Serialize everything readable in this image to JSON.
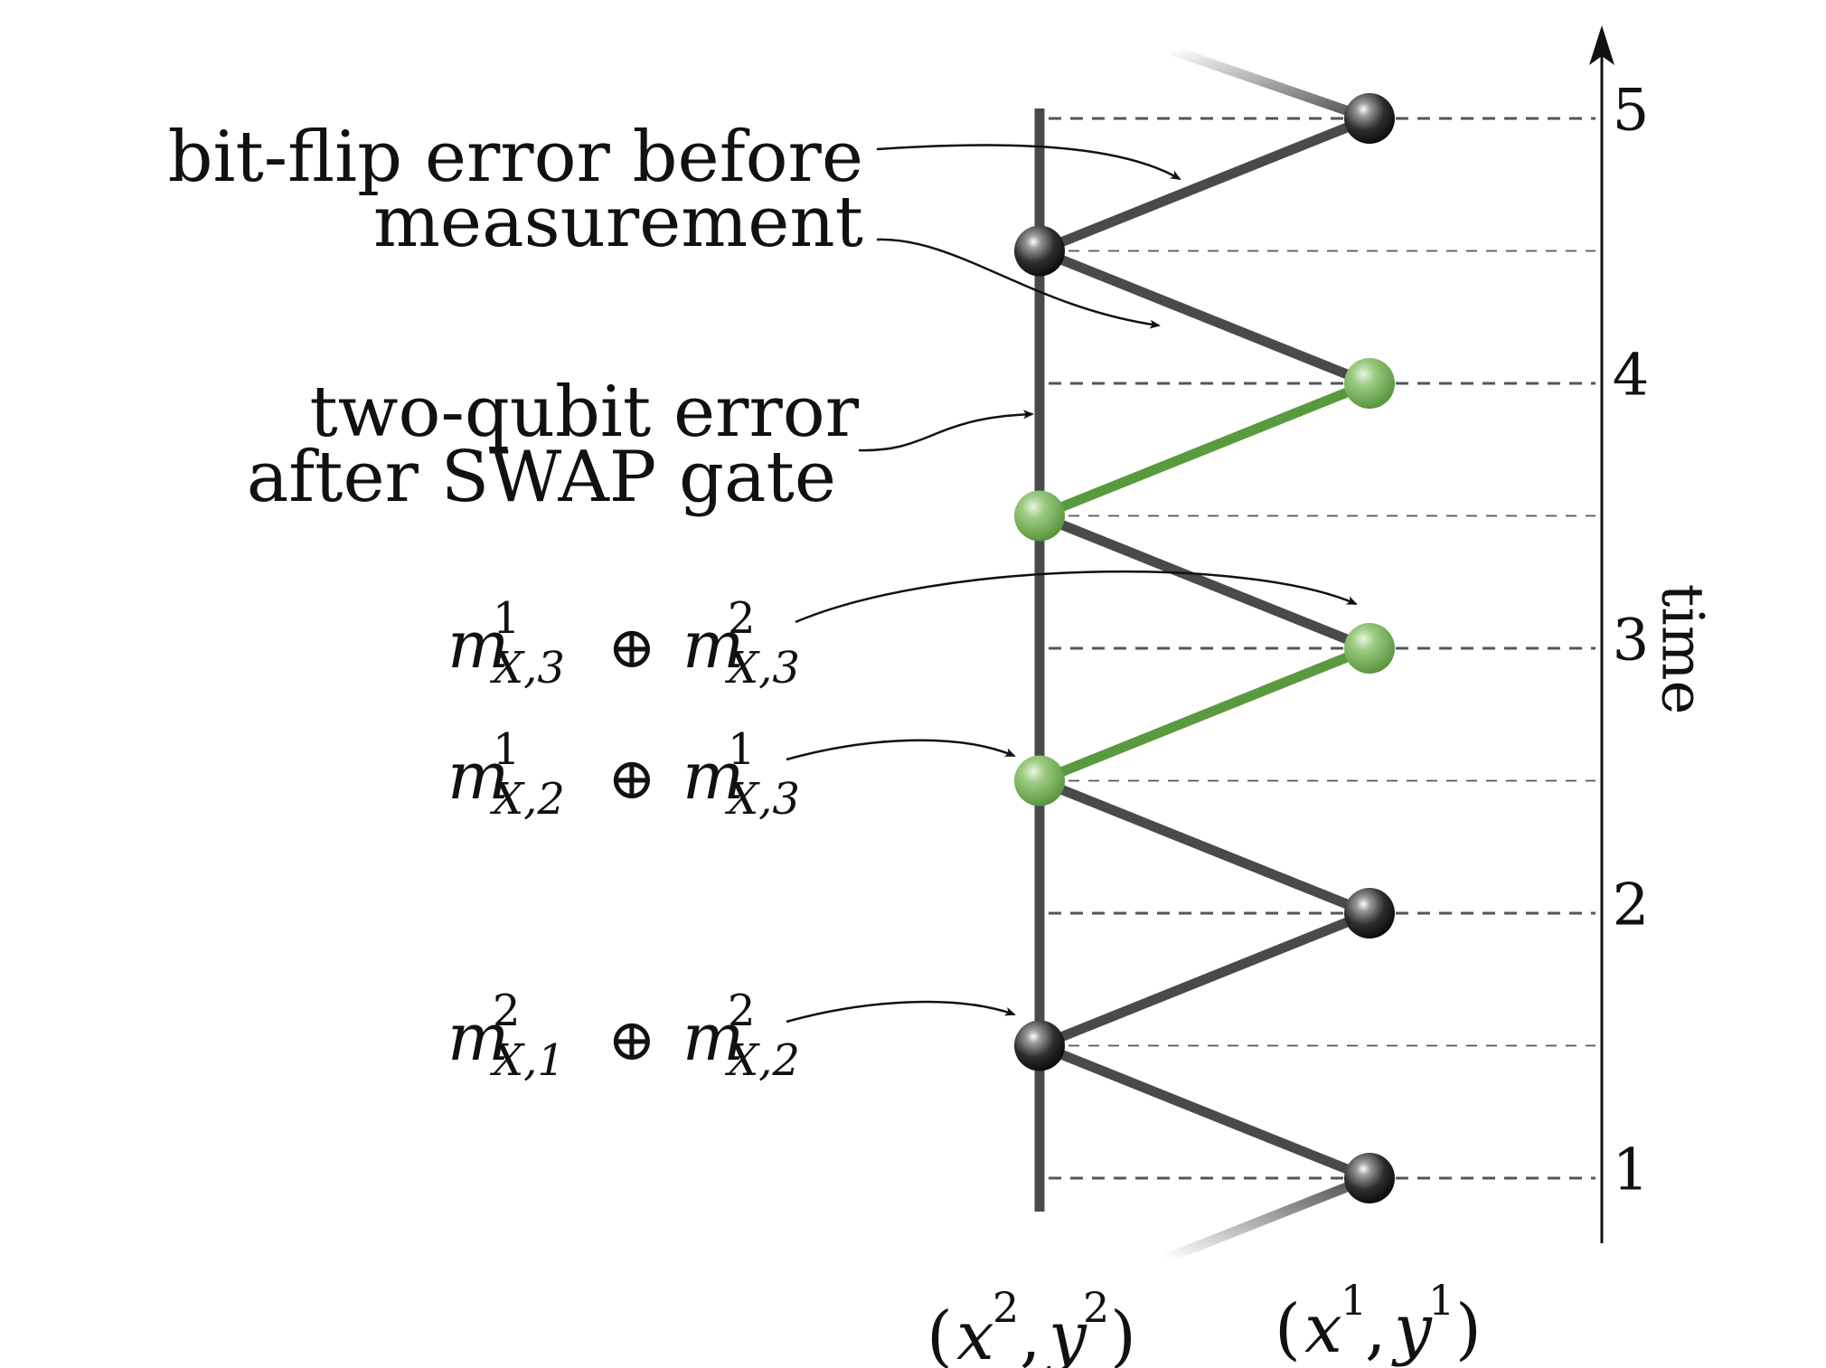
{
  "time_axis": {
    "label": "time",
    "ticks": [
      "1",
      "2",
      "3",
      "4",
      "5"
    ]
  },
  "columns": {
    "left": {
      "label": "(x², y²)",
      "base": "x",
      "exp": "2",
      "base2": "y",
      "exp2": "2"
    },
    "right": {
      "label": "(x¹, y¹)",
      "base": "x",
      "exp": "1",
      "base2": "y",
      "exp2": "1"
    }
  },
  "annotations": {
    "bitflip_line1": "bit-flip error before",
    "bitflip_line2": "measurement",
    "twoqubit_line1": "two-qubit error",
    "twoqubit_line2": "after SWAP gate"
  },
  "syndromes": [
    {
      "label": "m¹X,3 ⊕ m²X,3",
      "a_sup": "1",
      "a_sub": "X,3",
      "b_sup": "2",
      "b_sub": "X,3"
    },
    {
      "label": "m¹X,2 ⊕ m¹X,3",
      "a_sup": "1",
      "a_sub": "X,2",
      "b_sup": "1",
      "b_sub": "X,3"
    },
    {
      "label": "m²X,1 ⊕ m²X,2",
      "a_sup": "2",
      "a_sub": "X,1",
      "b_sup": "2",
      "b_sub": "X,2"
    }
  ],
  "nodes": [
    {
      "column": "right",
      "time": 1,
      "state": "normal"
    },
    {
      "column": "left",
      "time": 1.5,
      "state": "normal"
    },
    {
      "column": "right",
      "time": 2,
      "state": "normal"
    },
    {
      "column": "left",
      "time": 2.5,
      "state": "error"
    },
    {
      "column": "right",
      "time": 3,
      "state": "error"
    },
    {
      "column": "left",
      "time": 3.5,
      "state": "error"
    },
    {
      "column": "right",
      "time": 4,
      "state": "error"
    },
    {
      "column": "left",
      "time": 4.5,
      "state": "normal"
    },
    {
      "column": "right",
      "time": 5,
      "state": "normal"
    }
  ],
  "colors": {
    "edge": "#4a4a4a",
    "error_edge": "#5a9a3f",
    "axis": "#111111",
    "dash": "#555555"
  }
}
